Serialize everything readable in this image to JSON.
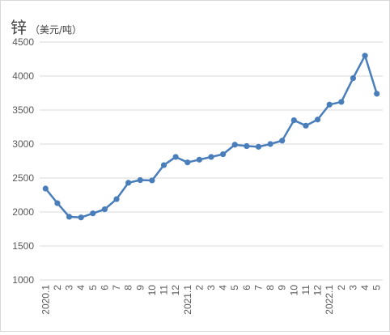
{
  "chart_data": {
    "type": "line",
    "title": "锌",
    "unit": "（美元/吨）",
    "ylim": [
      1000,
      4500
    ],
    "yticks": [
      1000,
      1500,
      2000,
      2500,
      3000,
      3500,
      4000,
      4500
    ],
    "grid": true,
    "categories": [
      "2020.1",
      "2",
      "3",
      "4",
      "5",
      "6",
      "7",
      "8",
      "9",
      "10",
      "11",
      "12",
      "2021.1",
      "2",
      "3",
      "4",
      "5",
      "6",
      "7",
      "8",
      "9",
      "10",
      "11",
      "12",
      "2022.1",
      "2",
      "3",
      "4",
      "5"
    ],
    "series": [
      {
        "values": [
          2345,
          2130,
          1930,
          1920,
          1980,
          2040,
          2190,
          2430,
          2470,
          2465,
          2690,
          2810,
          2730,
          2770,
          2810,
          2850,
          2990,
          2970,
          2960,
          3000,
          3050,
          3350,
          3270,
          3360,
          3580,
          3620,
          3970,
          4300,
          3740
        ],
        "color": "#4a7ebb"
      }
    ]
  }
}
